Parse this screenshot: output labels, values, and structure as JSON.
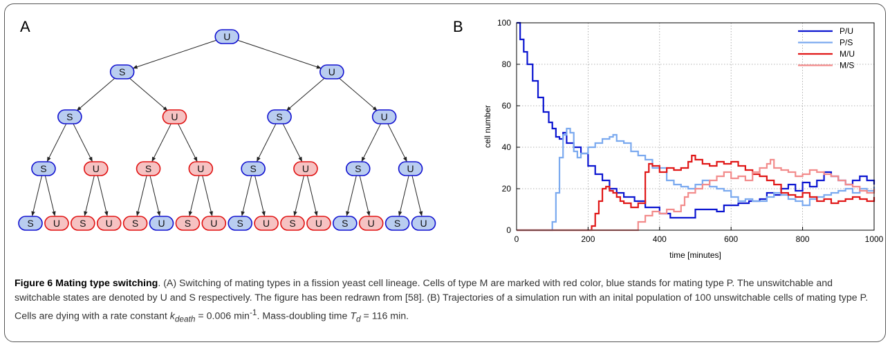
{
  "panel_a": {
    "letter": "A",
    "nodes": [
      {
        "id": "n1",
        "label": "U",
        "type": "P",
        "level": 0
      },
      {
        "id": "n2",
        "label": "S",
        "type": "P",
        "level": 1
      },
      {
        "id": "n3",
        "label": "U",
        "type": "P",
        "level": 1
      },
      {
        "id": "n4",
        "label": "S",
        "type": "P",
        "level": 2
      },
      {
        "id": "n5",
        "label": "U",
        "type": "M",
        "level": 2
      },
      {
        "id": "n6",
        "label": "S",
        "type": "P",
        "level": 2
      },
      {
        "id": "n7",
        "label": "U",
        "type": "P",
        "level": 2
      },
      {
        "id": "n8",
        "label": "S",
        "type": "P",
        "level": 3
      },
      {
        "id": "n9",
        "label": "U",
        "type": "M",
        "level": 3
      },
      {
        "id": "n10",
        "label": "S",
        "type": "M",
        "level": 3
      },
      {
        "id": "n11",
        "label": "U",
        "type": "M",
        "level": 3
      },
      {
        "id": "n12",
        "label": "S",
        "type": "P",
        "level": 3
      },
      {
        "id": "n13",
        "label": "U",
        "type": "M",
        "level": 3
      },
      {
        "id": "n14",
        "label": "S",
        "type": "P",
        "level": 3
      },
      {
        "id": "n15",
        "label": "U",
        "type": "P",
        "level": 3
      },
      {
        "id": "l1",
        "label": "S",
        "type": "P",
        "level": 4
      },
      {
        "id": "l2",
        "label": "U",
        "type": "M",
        "level": 4
      },
      {
        "id": "l3",
        "label": "S",
        "type": "M",
        "level": 4
      },
      {
        "id": "l4",
        "label": "U",
        "type": "M",
        "level": 4
      },
      {
        "id": "l5",
        "label": "S",
        "type": "M",
        "level": 4
      },
      {
        "id": "l6",
        "label": "U",
        "type": "P",
        "level": 4
      },
      {
        "id": "l7",
        "label": "S",
        "type": "M",
        "level": 4
      },
      {
        "id": "l8",
        "label": "U",
        "type": "M",
        "level": 4
      },
      {
        "id": "l9",
        "label": "S",
        "type": "P",
        "level": 4
      },
      {
        "id": "l10",
        "label": "U",
        "type": "M",
        "level": 4
      },
      {
        "id": "l11",
        "label": "S",
        "type": "M",
        "level": 4
      },
      {
        "id": "l12",
        "label": "U",
        "type": "M",
        "level": 4
      },
      {
        "id": "l13",
        "label": "S",
        "type": "P",
        "level": 4
      },
      {
        "id": "l14",
        "label": "U",
        "type": "M",
        "level": 4
      },
      {
        "id": "l15",
        "label": "S",
        "type": "P",
        "level": 4
      },
      {
        "id": "l16",
        "label": "U",
        "type": "P",
        "level": 4
      }
    ],
    "edges": [
      [
        "n1",
        "n2"
      ],
      [
        "n1",
        "n3"
      ],
      [
        "n2",
        "n4"
      ],
      [
        "n2",
        "n5"
      ],
      [
        "n3",
        "n6"
      ],
      [
        "n3",
        "n7"
      ],
      [
        "n4",
        "n8"
      ],
      [
        "n4",
        "n9"
      ],
      [
        "n5",
        "n10"
      ],
      [
        "n5",
        "n11"
      ],
      [
        "n6",
        "n12"
      ],
      [
        "n6",
        "n13"
      ],
      [
        "n7",
        "n14"
      ],
      [
        "n7",
        "n15"
      ],
      [
        "n8",
        "l1"
      ],
      [
        "n8",
        "l2"
      ],
      [
        "n9",
        "l3"
      ],
      [
        "n9",
        "l4"
      ],
      [
        "n10",
        "l5"
      ],
      [
        "n10",
        "l6"
      ],
      [
        "n11",
        "l7"
      ],
      [
        "n11",
        "l8"
      ],
      [
        "n12",
        "l9"
      ],
      [
        "n12",
        "l10"
      ],
      [
        "n13",
        "l11"
      ],
      [
        "n13",
        "l12"
      ],
      [
        "n14",
        "l13"
      ],
      [
        "n14",
        "l14"
      ],
      [
        "n15",
        "l15"
      ],
      [
        "n15",
        "l16"
      ]
    ],
    "colors": {
      "P_fill": "#b9cdf0",
      "P_stroke": "#1010d0",
      "M_fill": "#f6c2c2",
      "M_stroke": "#e01010"
    }
  },
  "panel_b": {
    "letter": "B"
  },
  "chart_data": {
    "type": "line",
    "title": "",
    "xlabel": "time [minutes]",
    "ylabel": "cell number",
    "xlim": [
      0,
      1000
    ],
    "ylim": [
      0,
      100
    ],
    "xticks": [
      0,
      200,
      400,
      600,
      800,
      1000
    ],
    "yticks": [
      0,
      20,
      40,
      60,
      80,
      100
    ],
    "grid": true,
    "legend_position": "top-right",
    "series": [
      {
        "name": "P/U",
        "color": "#0a14d0",
        "x": [
          0,
          10,
          20,
          30,
          45,
          60,
          75,
          90,
          100,
          110,
          120,
          130,
          140,
          160,
          180,
          200,
          220,
          240,
          260,
          280,
          300,
          330,
          360,
          400,
          430,
          460,
          480,
          500,
          540,
          560,
          580,
          600,
          620,
          650,
          680,
          700,
          720,
          740,
          760,
          780,
          800,
          820,
          840,
          860,
          880,
          900,
          920,
          940,
          960,
          980,
          1000
        ],
        "y": [
          100,
          92,
          86,
          80,
          72,
          64,
          57,
          52,
          49,
          45,
          44,
          47,
          42,
          40,
          37,
          31,
          27,
          24,
          20,
          18,
          16,
          14,
          11,
          8,
          6,
          6,
          6,
          10,
          10,
          9,
          12,
          12,
          13,
          14,
          15,
          18,
          17,
          20,
          22,
          19,
          23,
          21,
          24,
          28,
          26,
          24,
          22,
          24,
          26,
          24,
          22
        ]
      },
      {
        "name": "P/S",
        "color": "#7aa9ef",
        "x": [
          0,
          97,
          100,
          110,
          120,
          130,
          140,
          150,
          160,
          170,
          180,
          200,
          220,
          240,
          260,
          270,
          280,
          300,
          320,
          340,
          360,
          380,
          400,
          420,
          440,
          460,
          480,
          500,
          520,
          540,
          560,
          580,
          600,
          620,
          640,
          660,
          680,
          700,
          720,
          740,
          760,
          780,
          800,
          820,
          840,
          860,
          880,
          900,
          920,
          940,
          960,
          980,
          1000
        ],
        "y": [
          0,
          0,
          4,
          18,
          35,
          46,
          49,
          47,
          38,
          35,
          37,
          40,
          42,
          44,
          45,
          46,
          43,
          42,
          38,
          36,
          34,
          30,
          30,
          24,
          22,
          21,
          20,
          22,
          24,
          21,
          20,
          19,
          16,
          14,
          15,
          14,
          14,
          16,
          18,
          17,
          15,
          14,
          12,
          15,
          16,
          17,
          18,
          19,
          20,
          18,
          20,
          19,
          21
        ]
      },
      {
        "name": "M/U",
        "color": "#e01616",
        "x": [
          0,
          200,
          210,
          220,
          230,
          240,
          250,
          260,
          270,
          280,
          290,
          300,
          320,
          340,
          360,
          370,
          380,
          400,
          420,
          440,
          460,
          480,
          490,
          500,
          520,
          540,
          560,
          580,
          600,
          620,
          640,
          660,
          680,
          700,
          720,
          740,
          760,
          780,
          800,
          820,
          840,
          860,
          880,
          900,
          920,
          940,
          960,
          980,
          1000
        ],
        "y": [
          0,
          0,
          2,
          8,
          14,
          20,
          21,
          19,
          18,
          16,
          14,
          13,
          11,
          13,
          28,
          32,
          31,
          28,
          30,
          29,
          30,
          33,
          36,
          34,
          32,
          31,
          33,
          32,
          33,
          31,
          29,
          27,
          26,
          24,
          22,
          18,
          17,
          16,
          18,
          16,
          14,
          15,
          13,
          14,
          15,
          16,
          15,
          14,
          16
        ]
      },
      {
        "name": "M/S",
        "color": "#f28b8b",
        "x": [
          0,
          330,
          340,
          360,
          380,
          400,
          420,
          440,
          460,
          470,
          480,
          500,
          520,
          540,
          560,
          580,
          600,
          620,
          640,
          660,
          680,
          700,
          710,
          720,
          740,
          760,
          780,
          800,
          820,
          840,
          860,
          880,
          900,
          920,
          940,
          960,
          980,
          1000
        ],
        "y": [
          0,
          0,
          4,
          7,
          9,
          8,
          10,
          9,
          12,
          16,
          18,
          20,
          22,
          24,
          26,
          28,
          25,
          26,
          24,
          28,
          30,
          32,
          34,
          30,
          29,
          28,
          26,
          27,
          29,
          28,
          27,
          26,
          24,
          22,
          21,
          19,
          18,
          20
        ]
      }
    ]
  },
  "caption": {
    "title": "Figure 6 Mating type switching",
    "part1": ". (A) Switching of mating types in a fission yeast cell lineage. Cells of type M are marked with red color, blue stands for mating type P. The unswitchable and switchable states are denoted by U and S respectively. The figure has been redrawn from [58]. (B) Trajectories of a simulation run with an inital population of 100 unswitchable cells of mating type P. Cells are dying with a rate constant ",
    "k_sym": "k",
    "k_sub": "death",
    "k_value": " = 0.006 min",
    "k_exp": "-1",
    "part2": ". Mass-doubling time ",
    "t_sym": "T",
    "t_sub": "d",
    "t_value": " = 116 min."
  }
}
